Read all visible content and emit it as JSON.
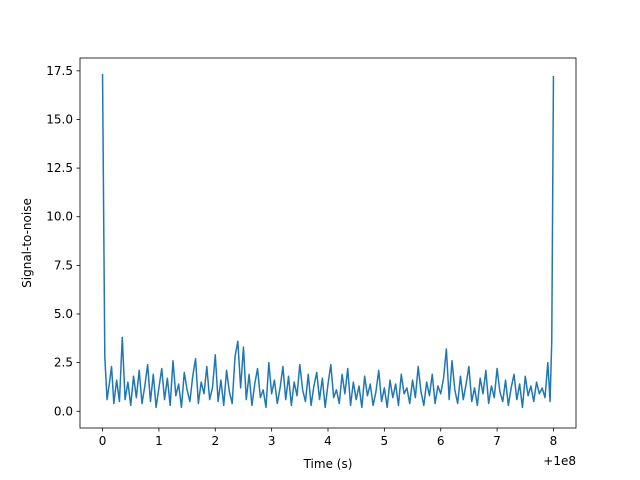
{
  "chart_data": {
    "type": "line",
    "xlabel": "Time (s)",
    "ylabel": "Signal-to-noise",
    "x_offset_label": "+1e8",
    "xlim": [
      -0.4,
      8.4
    ],
    "ylim": [
      -0.86,
      18.16
    ],
    "x_ticks": [
      0,
      1,
      2,
      3,
      4,
      5,
      6,
      7,
      8
    ],
    "x_tick_labels": [
      "0",
      "1",
      "2",
      "3",
      "4",
      "5",
      "6",
      "7",
      "8"
    ],
    "y_ticks": [
      0.0,
      2.5,
      5.0,
      7.5,
      10.0,
      12.5,
      15.0,
      17.5
    ],
    "y_tick_labels": [
      "0.0",
      "2.5",
      "5.0",
      "7.5",
      "10.0",
      "12.5",
      "15.0",
      "17.5"
    ],
    "grid": false,
    "line_color": "#1f77b4",
    "series": [
      {
        "x": [
          0.0,
          0.04,
          0.08,
          0.12,
          0.16,
          0.2,
          0.25,
          0.3,
          0.35,
          0.4,
          0.45,
          0.5,
          0.55,
          0.6,
          0.65,
          0.7,
          0.75,
          0.8,
          0.85,
          0.9,
          0.95,
          1.0,
          1.05,
          1.1,
          1.15,
          1.2,
          1.25,
          1.3,
          1.35,
          1.4,
          1.45,
          1.5,
          1.55,
          1.6,
          1.65,
          1.7,
          1.75,
          1.8,
          1.85,
          1.9,
          1.95,
          2.0,
          2.05,
          2.1,
          2.15,
          2.2,
          2.25,
          2.3,
          2.35,
          2.4,
          2.45,
          2.5,
          2.55,
          2.6,
          2.65,
          2.7,
          2.75,
          2.8,
          2.85,
          2.9,
          2.95,
          3.0,
          3.05,
          3.1,
          3.15,
          3.2,
          3.25,
          3.3,
          3.35,
          3.4,
          3.45,
          3.5,
          3.55,
          3.6,
          3.65,
          3.7,
          3.75,
          3.8,
          3.85,
          3.9,
          3.95,
          4.0,
          4.05,
          4.1,
          4.15,
          4.2,
          4.25,
          4.3,
          4.35,
          4.4,
          4.45,
          4.5,
          4.55,
          4.6,
          4.65,
          4.7,
          4.75,
          4.8,
          4.85,
          4.9,
          4.95,
          5.0,
          5.05,
          5.1,
          5.15,
          5.2,
          5.25,
          5.3,
          5.35,
          5.4,
          5.45,
          5.5,
          5.55,
          5.6,
          5.65,
          5.7,
          5.75,
          5.8,
          5.85,
          5.9,
          5.95,
          6.0,
          6.05,
          6.1,
          6.15,
          6.2,
          6.25,
          6.3,
          6.35,
          6.4,
          6.45,
          6.5,
          6.55,
          6.6,
          6.65,
          6.7,
          6.75,
          6.8,
          6.85,
          6.9,
          6.95,
          7.0,
          7.05,
          7.1,
          7.15,
          7.2,
          7.25,
          7.3,
          7.35,
          7.4,
          7.45,
          7.5,
          7.55,
          7.6,
          7.65,
          7.7,
          7.75,
          7.8,
          7.85,
          7.9,
          7.94,
          7.97,
          8.0
        ],
        "y": [
          17.3,
          2.8,
          0.6,
          1.4,
          2.3,
          0.4,
          1.6,
          0.5,
          3.8,
          0.6,
          1.5,
          0.3,
          1.8,
          0.7,
          2.1,
          0.4,
          1.3,
          2.4,
          0.5,
          1.9,
          0.2,
          1.2,
          2.2,
          0.6,
          1.7,
          0.3,
          2.6,
          0.8,
          1.4,
          0.2,
          2.0,
          1.1,
          0.5,
          1.8,
          2.7,
          0.4,
          1.5,
          0.9,
          2.3,
          0.6,
          1.2,
          2.9,
          0.5,
          1.6,
          0.3,
          2.1,
          1.0,
          0.4,
          2.8,
          3.6,
          1.2,
          3.3,
          0.6,
          1.9,
          0.3,
          1.4,
          2.2,
          0.7,
          1.1,
          0.2,
          2.5,
          0.9,
          1.6,
          0.4,
          1.2,
          2.3,
          0.6,
          1.8,
          0.3,
          1.5,
          0.8,
          2.4,
          1.1,
          0.5,
          1.9,
          0.3,
          1.3,
          2.0,
          0.6,
          1.7,
          0.2,
          1.4,
          2.4,
          0.7,
          1.1,
          0.4,
          1.9,
          0.9,
          2.2,
          0.3,
          1.5,
          0.6,
          1.3,
          0.2,
          1.8,
          0.8,
          1.4,
          0.3,
          1.0,
          2.1,
          0.5,
          1.2,
          0.2,
          1.6,
          0.7,
          1.4,
          0.3,
          1.9,
          0.9,
          1.2,
          0.4,
          1.6,
          0.7,
          2.3,
          1.0,
          0.3,
          1.5,
          0.8,
          1.9,
          0.4,
          1.3,
          0.9,
          1.7,
          3.2,
          0.6,
          2.6,
          1.1,
          0.4,
          1.8,
          0.6,
          1.4,
          2.3,
          0.5,
          1.2,
          0.3,
          1.7,
          0.9,
          2.1,
          0.4,
          1.3,
          0.7,
          2.2,
          1.0,
          0.5,
          1.6,
          0.3,
          1.2,
          1.9,
          0.6,
          1.4,
          0.2,
          1.8,
          0.8,
          1.3,
          0.5,
          1.5,
          0.9,
          1.2,
          0.7,
          2.5,
          0.5,
          3.6,
          17.2
        ]
      }
    ]
  }
}
